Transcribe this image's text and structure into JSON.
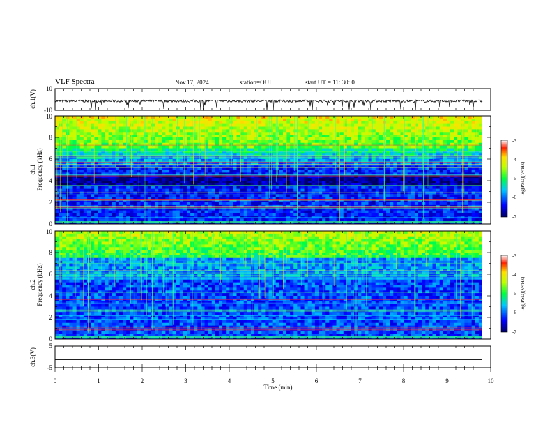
{
  "header": {
    "title": "VLF Spectra",
    "date": "Nov.17, 2024",
    "station": "station=OUI",
    "start": "start  UT =  11: 30: 0"
  },
  "chart_data": [
    {
      "type": "line",
      "ylabel": "ch.1(V)",
      "ylim": [
        -10,
        10
      ],
      "ytick_labels": [
        "10",
        "-10"
      ],
      "baseline": -1.5
    },
    {
      "type": "heatmap",
      "ylabel": "Frequency (kHz)",
      "ylabel_prefix": "ch.1",
      "xlim": [
        0,
        10
      ],
      "ylim": [
        0,
        10
      ],
      "ytick_labels": [
        "0",
        "2",
        "4",
        "6",
        "8",
        "10"
      ],
      "colorbar": {
        "label": "log(PSD)(V²/Hz)",
        "range": [
          -7,
          -3
        ],
        "tick_labels": [
          "-3",
          "-4",
          "-5",
          "-6",
          "-7"
        ]
      }
    },
    {
      "type": "heatmap",
      "ylabel": "Frequency (kHz)",
      "ylabel_prefix": "ch.2",
      "xlim": [
        0,
        10
      ],
      "ylim": [
        0,
        10
      ],
      "ytick_labels": [
        "0",
        "2",
        "4",
        "6",
        "8",
        "10"
      ],
      "colorbar": {
        "label": "log(PSD)(V²/Hz)",
        "range": [
          -7,
          -3
        ],
        "tick_labels": [
          "-3",
          "-4",
          "-5",
          "-6",
          "-7"
        ]
      }
    },
    {
      "type": "line",
      "ylabel": "ch.3(V)",
      "ylim": [
        -5,
        5
      ],
      "ytick_labels": [
        "5",
        "-5"
      ],
      "baseline": -1.2
    }
  ],
  "xaxis": {
    "label": "Time (min)",
    "range": [
      0,
      10
    ],
    "tick_labels": [
      "0",
      "1",
      "2",
      "3",
      "4",
      "5",
      "6",
      "7",
      "8",
      "9",
      "10"
    ]
  }
}
